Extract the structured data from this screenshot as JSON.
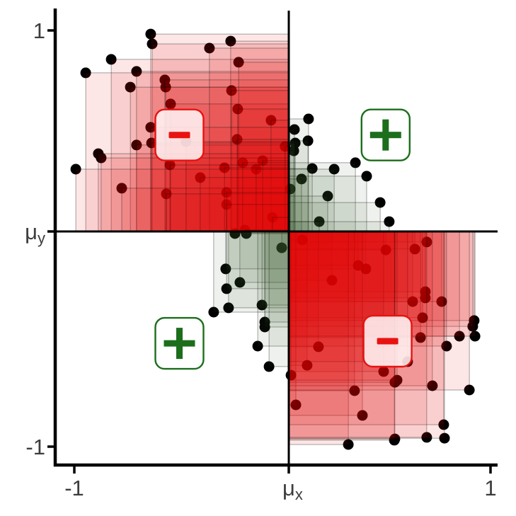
{
  "chart_data": {
    "type": "scatter",
    "title": "",
    "description_labels": {
      "x_mean_label": "μ",
      "x_mean_sub": "x",
      "y_mean_label": "μ",
      "y_mean_sub": "y"
    },
    "x_axis": {
      "range": [
        -1,
        1
      ],
      "ticks": [
        {
          "value": -1,
          "label": "-1"
        },
        {
          "value": 0,
          "label": "μ",
          "sub": "x"
        },
        {
          "value": 1,
          "label": "1"
        }
      ]
    },
    "y_axis": {
      "range": [
        -1,
        1
      ],
      "ticks": [
        {
          "value": 1,
          "label": "1"
        },
        {
          "value": 0,
          "label": "μ",
          "sub": "y"
        },
        {
          "value": -1,
          "label": "-1"
        }
      ]
    },
    "points": [
      [
        -0.644,
        0.982
      ],
      [
        -0.637,
        0.933
      ],
      [
        -0.828,
        0.856
      ],
      [
        -0.947,
        0.789
      ],
      [
        -0.71,
        0.796
      ],
      [
        -0.739,
        0.718
      ],
      [
        -0.578,
        0.754
      ],
      [
        -0.574,
        0.718
      ],
      [
        -0.551,
        0.634
      ],
      [
        -0.271,
        0.947
      ],
      [
        -0.37,
        0.912
      ],
      [
        -0.234,
        0.842
      ],
      [
        -0.267,
        0.701
      ],
      [
        -0.238,
        0.609
      ],
      [
        -0.083,
        0.553
      ],
      [
        -0.71,
        0.43
      ],
      [
        -0.644,
        0.518
      ],
      [
        -0.64,
        0.44
      ],
      [
        -0.888,
        0.387
      ],
      [
        -0.875,
        0.366
      ],
      [
        -0.993,
        0.31
      ],
      [
        -0.779,
        0.215
      ],
      [
        -0.571,
        0.187
      ],
      [
        -0.241,
        0.458
      ],
      [
        -0.017,
        0.423
      ],
      [
        -0.215,
        0.342
      ],
      [
        -0.122,
        0.352
      ],
      [
        -0.3,
        0.317
      ],
      [
        -0.152,
        0.31
      ],
      [
        -0.413,
        0.268
      ],
      [
        -0.29,
        0.194
      ],
      [
        -0.29,
        0.134
      ],
      [
        -0.076,
        0.07
      ],
      [
        -0.205,
        0.007
      ],
      [
        -0.479,
        0.447
      ],
      [
        -0.554,
        0.331
      ],
      [
        0.098,
        0.56
      ],
      [
        0.028,
        0.507
      ],
      [
        0.095,
        0.451
      ],
      [
        0.032,
        0.44
      ],
      [
        0.025,
        0.401
      ],
      [
        0.33,
        0.342
      ],
      [
        0.116,
        0.313
      ],
      [
        0.225,
        0.31
      ],
      [
        0.063,
        0.261
      ],
      [
        0.386,
        0.275
      ],
      [
        0.007,
        0.211
      ],
      [
        0.193,
        0.176
      ],
      [
        0.453,
        0.144
      ],
      [
        0.151,
        0.049
      ],
      [
        0.498,
        0.049
      ],
      [
        -0.251,
        -0.01
      ],
      [
        -0.198,
        -0.01
      ],
      [
        -0.033,
        -0.076
      ],
      [
        -0.294,
        -0.174
      ],
      [
        -0.228,
        -0.237
      ],
      [
        -0.29,
        -0.266
      ],
      [
        -0.125,
        -0.342
      ],
      [
        -0.281,
        -0.355
      ],
      [
        -0.35,
        -0.375
      ],
      [
        -0.112,
        -0.421
      ],
      [
        -0.112,
        -0.444
      ],
      [
        -0.145,
        -0.533
      ],
      [
        -0.092,
        -0.628
      ],
      [
        0.067,
        -0.039
      ],
      [
        0.481,
        -0.086
      ],
      [
        0.344,
        -0.158
      ],
      [
        0.382,
        -0.174
      ],
      [
        0.214,
        -0.227
      ],
      [
        0.684,
        -0.049
      ],
      [
        0.625,
        -0.082
      ],
      [
        0.677,
        -0.28
      ],
      [
        0.677,
        -0.309
      ],
      [
        0.614,
        -0.326
      ],
      [
        0.758,
        -0.326
      ],
      [
        0.663,
        -0.401
      ],
      [
        0.919,
        -0.414
      ],
      [
        0.912,
        -0.441
      ],
      [
        0.653,
        -0.493
      ],
      [
        0.846,
        -0.487
      ],
      [
        0.923,
        -0.487
      ],
      [
        0.782,
        -0.533
      ],
      [
        0.147,
        -0.536
      ],
      [
        0.091,
        -0.622
      ],
      [
        0.011,
        -0.668
      ],
      [
        0.47,
        -0.651
      ],
      [
        0.526,
        -0.701
      ],
      [
        0.326,
        -0.74
      ],
      [
        0.035,
        -0.806
      ],
      [
        0.365,
        -0.855
      ],
      [
        0.295,
        -0.99
      ],
      [
        0.523,
        -0.97
      ],
      [
        0.589,
        -0.605
      ],
      [
        0.537,
        -0.691
      ],
      [
        0.712,
        -0.717
      ],
      [
        0.895,
        -0.737
      ],
      [
        0.768,
        -0.898
      ],
      [
        0.526,
        -0.964
      ],
      [
        0.684,
        -0.957
      ],
      [
        0.772,
        -0.961
      ]
    ],
    "annotations": [
      {
        "quadrant": "top-left",
        "sign": "minus",
        "glyph": "−",
        "x": -0.51,
        "y": 0.48
      },
      {
        "quadrant": "top-right",
        "sign": "plus",
        "glyph": "+",
        "x": 0.48,
        "y": 0.48
      },
      {
        "quadrant": "bottom-left",
        "sign": "plus",
        "glyph": "+",
        "x": -0.51,
        "y": -0.52
      },
      {
        "quadrant": "bottom-right",
        "sign": "minus",
        "glyph": "−",
        "x": 0.49,
        "y": -0.51
      }
    ],
    "colors": {
      "point": "#000000",
      "negative_area": "rgba(230,10,10,0.10)",
      "positive_area": "rgba(55,90,45,0.085)",
      "rect_border": "rgba(0,0,0,0.5)",
      "negative_sign": "#e81310",
      "positive_sign": "#1c6e1c",
      "minus_box_fill": "rgba(255,241,242,0.88)",
      "plus_box_fill": "#ffffff",
      "axis": "#000000",
      "tick_label": "#3d3d3d"
    },
    "legend": null,
    "grid": false
  }
}
